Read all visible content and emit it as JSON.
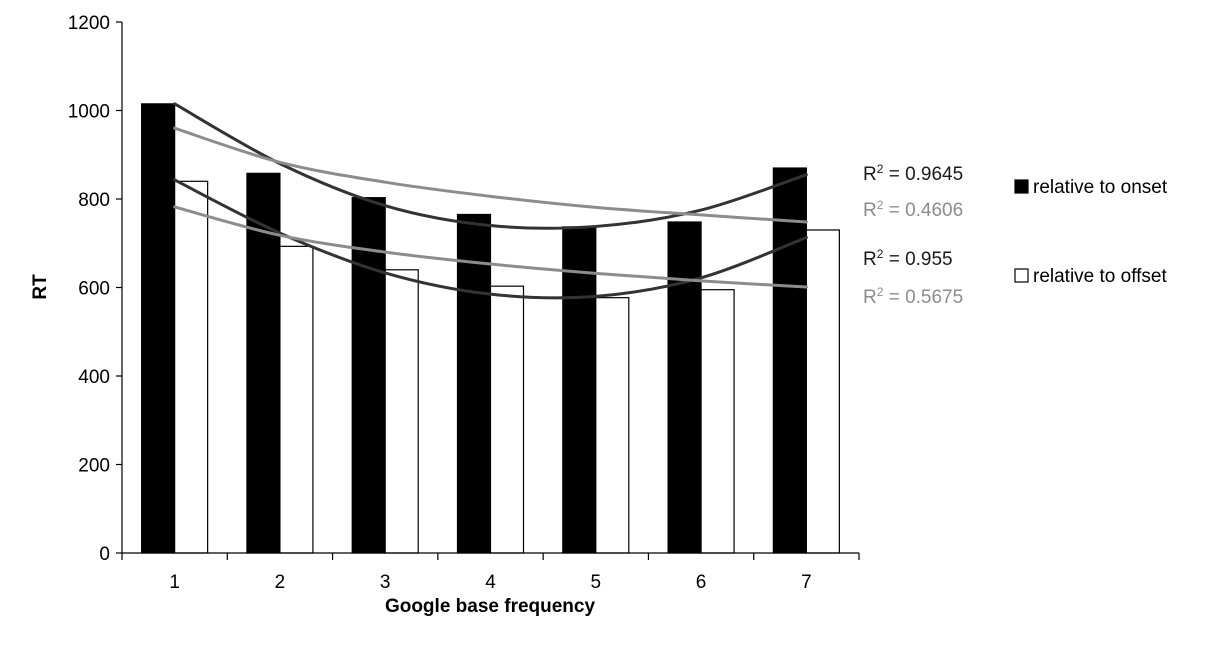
{
  "chart_data": {
    "type": "bar",
    "title": "",
    "xlabel": "Google base frequency",
    "ylabel": "RT",
    "categories": [
      "1",
      "2",
      "3",
      "4",
      "5",
      "6",
      "7"
    ],
    "ylim": [
      0,
      1200
    ],
    "yticks": [
      0,
      200,
      400,
      600,
      800,
      1000,
      1200
    ],
    "grid": false,
    "legend_position": "right",
    "series": [
      {
        "name": "relative to onset",
        "values": [
          1015,
          858,
          803,
          765,
          737,
          748,
          870
        ],
        "fill": "#000000",
        "stroke": "#000000"
      },
      {
        "name": "relative to offset",
        "values": [
          840,
          693,
          640,
          603,
          577,
          595,
          730
        ],
        "fill": "#ffffff",
        "stroke": "#000000"
      }
    ],
    "trendlines": [
      {
        "series": "relative to onset",
        "kind": "polynomial",
        "color": "#333333",
        "values": [
          1015,
          880,
          785,
          740,
          738,
          775,
          855
        ],
        "r2_prefix": "R",
        "r2_exp": "2",
        "r2_value": " = 0.9645"
      },
      {
        "series": "relative to onset",
        "kind": "logarithmic",
        "color": "#8c8c8c",
        "values": [
          960,
          883,
          838,
          806,
          781,
          764,
          748
        ],
        "r2_prefix": "R",
        "r2_exp": "2",
        "r2_value": " = 0.4606"
      },
      {
        "series": "relative to offset",
        "kind": "polynomial",
        "color": "#333333",
        "values": [
          843,
          723,
          633,
          585,
          580,
          622,
          713
        ],
        "r2_prefix": "R",
        "r2_exp": "2",
        "r2_value": " = 0.955"
      },
      {
        "series": "relative to offset",
        "kind": "logarithmic",
        "color": "#8c8c8c",
        "values": [
          782,
          718,
          680,
          653,
          632,
          615,
          601
        ],
        "r2_prefix": "R",
        "r2_exp": "2",
        "r2_value": " = 0.5675"
      }
    ]
  }
}
